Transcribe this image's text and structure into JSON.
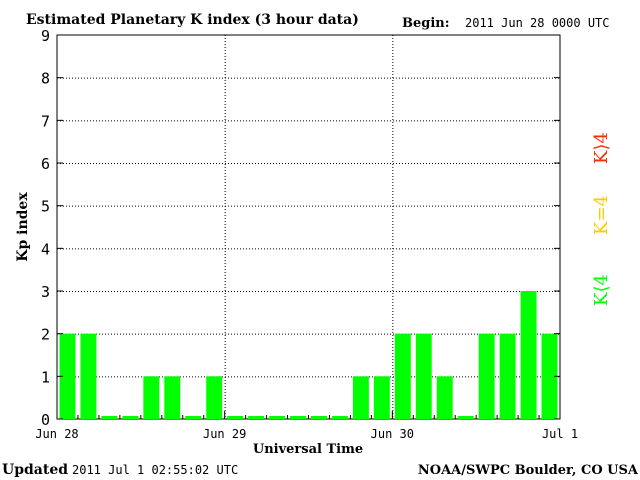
{
  "header": {
    "title": "Estimated Planetary K index (3 hour data)",
    "begin_label": "Begin:",
    "begin_value": "2011 Jun 28 0000 UTC"
  },
  "footer": {
    "updated_label": "Updated",
    "updated_value": "2011 Jul  1 02:55:02 UTC",
    "source": "NOAA/SWPC Boulder, CO USA"
  },
  "legend": {
    "high": "K⟩4",
    "equal": "K=4",
    "low": "K⟨4"
  },
  "colors": {
    "bar": "#00ff00",
    "high": "#ff2a00",
    "equal": "#ffcc00",
    "low": "#00ff00",
    "grid": "#000000"
  },
  "chart_data": {
    "type": "bar",
    "title": "Estimated Planetary K index (3 hour data)",
    "xlabel": "Universal Time",
    "ylabel": "Kp index",
    "ylim": [
      0,
      9
    ],
    "yticks": [
      0,
      1,
      2,
      3,
      4,
      5,
      6,
      7,
      8,
      9
    ],
    "grid": true,
    "x_tick_labels": [
      "Jun 28",
      "Jun 29",
      "Jun 30",
      "Jul 1"
    ],
    "bar_interval_hours": 3,
    "values": [
      2,
      2,
      0,
      0,
      1,
      1,
      0,
      1,
      0,
      0,
      0,
      0,
      0,
      0,
      1,
      1,
      2,
      2,
      1,
      0,
      2,
      2,
      3,
      2
    ]
  }
}
